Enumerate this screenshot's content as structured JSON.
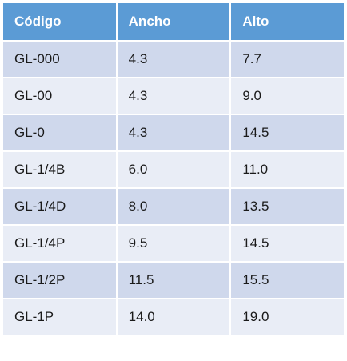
{
  "table": {
    "header": [
      "Código",
      "Ancho",
      "Alto"
    ],
    "rows": [
      [
        "GL-000",
        "4.3",
        "7.7"
      ],
      [
        "GL-00",
        "4.3",
        "9.0"
      ],
      [
        "GL-0",
        "4.3",
        "14.5"
      ],
      [
        "GL-1/4B",
        "6.0",
        "11.0"
      ],
      [
        "GL-1/4D",
        "8.0",
        "13.5"
      ],
      [
        "GL-1/4P",
        "9.5",
        "14.5"
      ],
      [
        "GL-1/2P",
        "11.5",
        "15.5"
      ],
      [
        "GL-1P",
        "14.0",
        "19.0"
      ]
    ]
  }
}
